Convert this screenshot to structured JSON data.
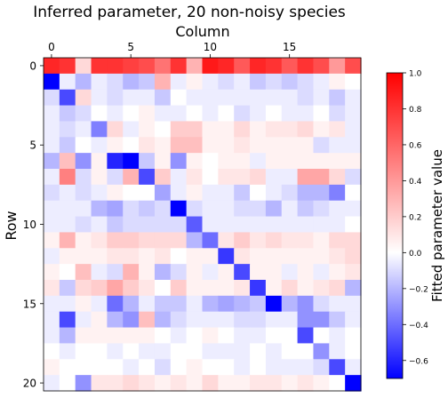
{
  "chart_data": {
    "type": "heatmap",
    "title": "Inferred parameter, 20 non-noisy species",
    "xlabel": "Column",
    "ylabel": "Row",
    "x_axis_position": "top",
    "xticks": [
      0,
      5,
      10,
      15
    ],
    "yticks": [
      0,
      5,
      10,
      15,
      20
    ],
    "n_rows": 21,
    "n_cols": 20,
    "colormap": "bwr",
    "vmin": -0.7,
    "vmax": 1.0,
    "colorbar": {
      "label": "Fitted parameter value",
      "ticks": [
        1.0,
        0.8,
        0.6,
        0.4,
        0.2,
        0.0,
        -0.2,
        -0.4,
        -0.6
      ],
      "tick_labels": [
        "1.0",
        "0.8",
        "0.6",
        "0.4",
        "0.2",
        "0.0",
        "−0.2",
        "−0.4",
        "−0.6"
      ]
    },
    "values": [
      [
        0.85,
        0.8,
        0.15,
        0.8,
        0.8,
        0.75,
        0.7,
        0.55,
        0.8,
        0.3,
        0.9,
        0.85,
        0.65,
        0.85,
        0.8,
        0.65,
        0.8,
        0.7,
        0.4,
        0.7
      ],
      [
        -0.7,
        -0.05,
        -0.2,
        -0.05,
        -0.1,
        -0.2,
        -0.15,
        0.3,
        -0.05,
        0.05,
        -0.05,
        -0.1,
        -0.05,
        -0.15,
        -0.1,
        -0.15,
        -0.1,
        -0.05,
        0.05,
        0.0
      ],
      [
        -0.1,
        -0.5,
        0.15,
        -0.05,
        -0.1,
        -0.05,
        -0.05,
        -0.15,
        0.0,
        -0.05,
        -0.05,
        -0.05,
        -0.05,
        -0.05,
        -0.05,
        -0.05,
        -0.1,
        -0.05,
        -0.15,
        -0.05
      ],
      [
        -0.05,
        -0.15,
        -0.1,
        0.0,
        -0.05,
        0.0,
        0.05,
        -0.05,
        -0.05,
        0.0,
        -0.05,
        0.0,
        -0.1,
        -0.05,
        0.0,
        -0.05,
        -0.05,
        0.0,
        -0.1,
        -0.05
      ],
      [
        -0.05,
        -0.1,
        -0.05,
        -0.35,
        0.15,
        -0.05,
        0.05,
        0.0,
        0.2,
        0.2,
        0.05,
        0.05,
        0.15,
        0.05,
        0.1,
        0.1,
        0.15,
        0.05,
        0.1,
        -0.05
      ],
      [
        -0.05,
        -0.15,
        0.0,
        -0.05,
        0.05,
        0.0,
        0.1,
        0.05,
        0.25,
        0.25,
        0.05,
        0.05,
        0.1,
        0.05,
        0.05,
        0.05,
        0.05,
        -0.1,
        -0.05,
        -0.05
      ],
      [
        -0.2,
        0.25,
        -0.3,
        0.05,
        -0.6,
        -0.7,
        -0.15,
        0.05,
        -0.3,
        0.05,
        0.0,
        0.05,
        0.05,
        -0.05,
        0.05,
        0.05,
        0.05,
        0.05,
        0.05,
        0.05
      ],
      [
        -0.05,
        0.5,
        -0.1,
        0.05,
        -0.1,
        0.3,
        -0.5,
        0.2,
        -0.05,
        0.1,
        0.0,
        0.1,
        0.1,
        0.15,
        -0.05,
        -0.05,
        0.35,
        0.35,
        0.15,
        -0.1
      ],
      [
        -0.1,
        -0.05,
        -0.1,
        -0.05,
        0.05,
        0.0,
        0.0,
        -0.25,
        -0.05,
        0.05,
        -0.05,
        -0.05,
        -0.15,
        0.0,
        -0.05,
        -0.1,
        -0.2,
        -0.2,
        -0.35,
        0.0
      ],
      [
        -0.05,
        -0.05,
        -0.05,
        -0.2,
        -0.25,
        -0.1,
        -0.15,
        -0.1,
        -0.7,
        -0.1,
        -0.05,
        -0.05,
        -0.1,
        -0.1,
        -0.2,
        -0.05,
        -0.15,
        -0.1,
        -0.05,
        -0.05
      ],
      [
        -0.05,
        -0.05,
        -0.1,
        -0.05,
        -0.15,
        -0.1,
        -0.1,
        -0.1,
        -0.1,
        -0.45,
        -0.05,
        -0.05,
        -0.05,
        -0.05,
        -0.05,
        -0.05,
        -0.05,
        -0.05,
        -0.05,
        0.0
      ],
      [
        0.05,
        0.3,
        0.05,
        0.1,
        0.2,
        0.2,
        0.15,
        0.15,
        0.15,
        -0.2,
        -0.4,
        0.1,
        0.2,
        0.1,
        0.15,
        0.1,
        0.1,
        0.05,
        0.15,
        0.15
      ],
      [
        -0.05,
        0.05,
        0.05,
        0.05,
        0.1,
        0.1,
        0.05,
        0.1,
        0.0,
        0.05,
        0.05,
        -0.55,
        0.1,
        0.05,
        0.05,
        0.05,
        0.05,
        0.05,
        0.1,
        0.15
      ],
      [
        0.05,
        0.0,
        0.25,
        -0.05,
        -0.1,
        0.3,
        0.05,
        -0.2,
        -0.1,
        0.05,
        -0.05,
        0.05,
        -0.5,
        0.05,
        0.05,
        -0.05,
        0.05,
        -0.05,
        0.05,
        0.1
      ],
      [
        0.1,
        -0.15,
        0.15,
        0.2,
        0.35,
        0.2,
        0.1,
        0.0,
        0.2,
        0.05,
        0.05,
        0.05,
        0.1,
        -0.55,
        0.05,
        0.15,
        0.05,
        0.1,
        0.15,
        -0.2
      ],
      [
        -0.05,
        -0.05,
        0.05,
        -0.05,
        -0.4,
        -0.2,
        -0.05,
        -0.15,
        -0.15,
        -0.05,
        -0.2,
        -0.25,
        -0.2,
        -0.15,
        -0.75,
        -0.2,
        -0.3,
        -0.1,
        -0.05,
        -0.05
      ],
      [
        -0.05,
        -0.5,
        -0.05,
        0.05,
        -0.2,
        -0.3,
        0.25,
        -0.2,
        -0.1,
        -0.05,
        -0.05,
        -0.05,
        -0.1,
        -0.1,
        -0.05,
        -0.05,
        -0.3,
        -0.3,
        -0.15,
        -0.05
      ],
      [
        -0.05,
        -0.2,
        0.05,
        0.05,
        0.05,
        0.05,
        0.05,
        0.0,
        -0.05,
        0.0,
        0.05,
        0.0,
        -0.05,
        -0.05,
        0.0,
        0.0,
        -0.5,
        0.0,
        -0.05,
        0.0
      ],
      [
        0.0,
        -0.05,
        0.0,
        0.0,
        -0.05,
        0.0,
        -0.05,
        -0.05,
        0.0,
        0.0,
        -0.05,
        -0.05,
        -0.05,
        0.0,
        -0.05,
        0.0,
        0.0,
        -0.3,
        -0.05,
        0.0
      ],
      [
        0.05,
        0.0,
        0.0,
        0.0,
        0.0,
        -0.05,
        0.0,
        -0.1,
        0.0,
        0.05,
        0.0,
        0.0,
        -0.05,
        0.0,
        -0.05,
        -0.05,
        -0.05,
        -0.1,
        -0.5,
        -0.05
      ],
      [
        -0.05,
        0.0,
        -0.3,
        0.1,
        0.1,
        0.15,
        0.1,
        0.05,
        0.1,
        0.05,
        0.15,
        0.05,
        0.05,
        0.1,
        0.1,
        0.05,
        0.1,
        0.05,
        0.0,
        -0.7
      ]
    ]
  }
}
